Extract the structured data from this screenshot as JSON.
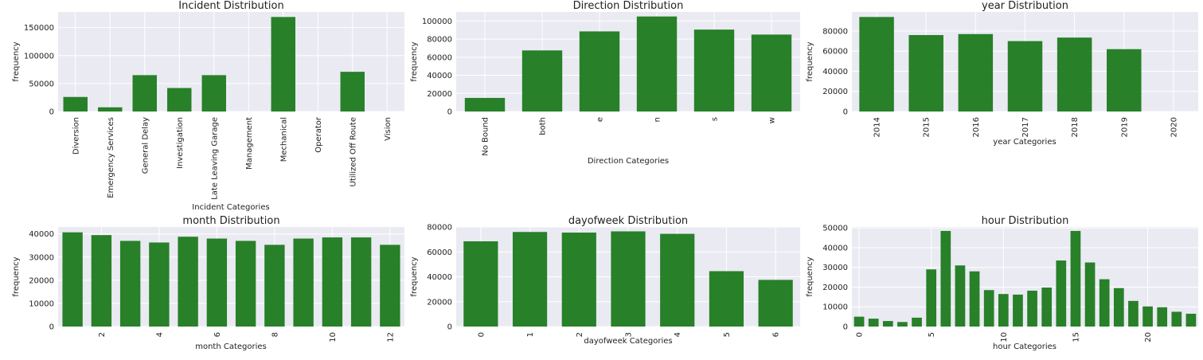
{
  "chart_data": [
    {
      "type": "bar",
      "title": "Incident Distribution",
      "xlabel": "Incident Categories",
      "ylabel": "frequency",
      "categories": [
        "Diversion",
        "Emergency Services",
        "General Delay",
        "Investigation",
        "Late Leaving Garage",
        "Management",
        "Mechanical",
        "Operator",
        "Utilized Off Route",
        "Vision"
      ],
      "values": [
        26000,
        7500,
        65000,
        42000,
        65000,
        0,
        169000,
        0,
        71000,
        0
      ],
      "ylim": [
        0,
        178000
      ],
      "yticks": [
        0,
        50000,
        100000,
        150000
      ],
      "xtick_rotation": 90,
      "grid": true
    },
    {
      "type": "bar",
      "title": "Direction Distribution",
      "xlabel": "Direction Categories",
      "ylabel": "frequency",
      "categories": [
        "No Bound",
        "both",
        "e",
        "n",
        "s",
        "w"
      ],
      "values": [
        15000,
        67500,
        88500,
        105000,
        90500,
        85000
      ],
      "ylim": [
        0,
        110000
      ],
      "yticks": [
        0,
        20000,
        40000,
        60000,
        80000,
        100000
      ],
      "xtick_rotation": 90,
      "grid": true
    },
    {
      "type": "bar",
      "title": "year Distribution",
      "xlabel": "year Categories",
      "ylabel": "frequency",
      "categories": [
        "2014",
        "2015",
        "2016",
        "2017",
        "2018",
        "2019",
        "2020"
      ],
      "values": [
        94000,
        76000,
        77000,
        70000,
        73500,
        62000,
        0
      ],
      "ylim": [
        0,
        99000
      ],
      "yticks": [
        0,
        20000,
        40000,
        60000,
        80000
      ],
      "xtick_rotation": 90,
      "grid": true
    },
    {
      "type": "bar",
      "title": "month Distribution",
      "xlabel": "month Categories",
      "ylabel": "frequency",
      "x": [
        1,
        2,
        3,
        4,
        5,
        6,
        7,
        8,
        9,
        10,
        11,
        12
      ],
      "values": [
        40700,
        39500,
        37000,
        36300,
        38800,
        38000,
        37000,
        35300,
        38000,
        38500,
        38500,
        35300
      ],
      "xtick_labels": [
        "2",
        "4",
        "6",
        "8",
        "10",
        "12"
      ],
      "xtick_values": [
        2,
        4,
        6,
        8,
        10,
        12
      ],
      "ylim": [
        0,
        43000
      ],
      "yticks": [
        0,
        10000,
        20000,
        30000,
        40000
      ],
      "xtick_rotation": 90,
      "grid": true
    },
    {
      "type": "bar",
      "title": "dayofweek Distribution",
      "xlabel": "dayofweek Categories",
      "ylabel": "frequency",
      "categories": [
        "0",
        "1",
        "2",
        "3",
        "4",
        "5",
        "6"
      ],
      "values": [
        68500,
        76000,
        75500,
        76500,
        74500,
        44500,
        37500
      ],
      "ylim": [
        0,
        80000
      ],
      "yticks": [
        0,
        20000,
        40000,
        60000,
        80000
      ],
      "xtick_rotation": 90,
      "grid": true
    },
    {
      "type": "bar",
      "title": "hour Distribution",
      "xlabel": "hour Categories",
      "ylabel": "frequency",
      "x": [
        0,
        1,
        2,
        3,
        4,
        5,
        6,
        7,
        8,
        9,
        10,
        11,
        12,
        13,
        14,
        15,
        16,
        17,
        18,
        19,
        20,
        21,
        22,
        23
      ],
      "values": [
        5000,
        4000,
        2800,
        2300,
        4500,
        29000,
        48500,
        31000,
        28000,
        18500,
        16500,
        16200,
        18200,
        19800,
        33500,
        48500,
        32500,
        24000,
        19500,
        13000,
        10200,
        9800,
        7500,
        6500
      ],
      "xtick_labels": [
        "0",
        "5",
        "10",
        "15",
        "20"
      ],
      "xtick_values": [
        0,
        5,
        10,
        15,
        20
      ],
      "ylim": [
        0,
        50500
      ],
      "yticks": [
        0,
        10000,
        20000,
        30000,
        40000,
        50000
      ],
      "xtick_rotation": 90,
      "grid": true
    }
  ]
}
